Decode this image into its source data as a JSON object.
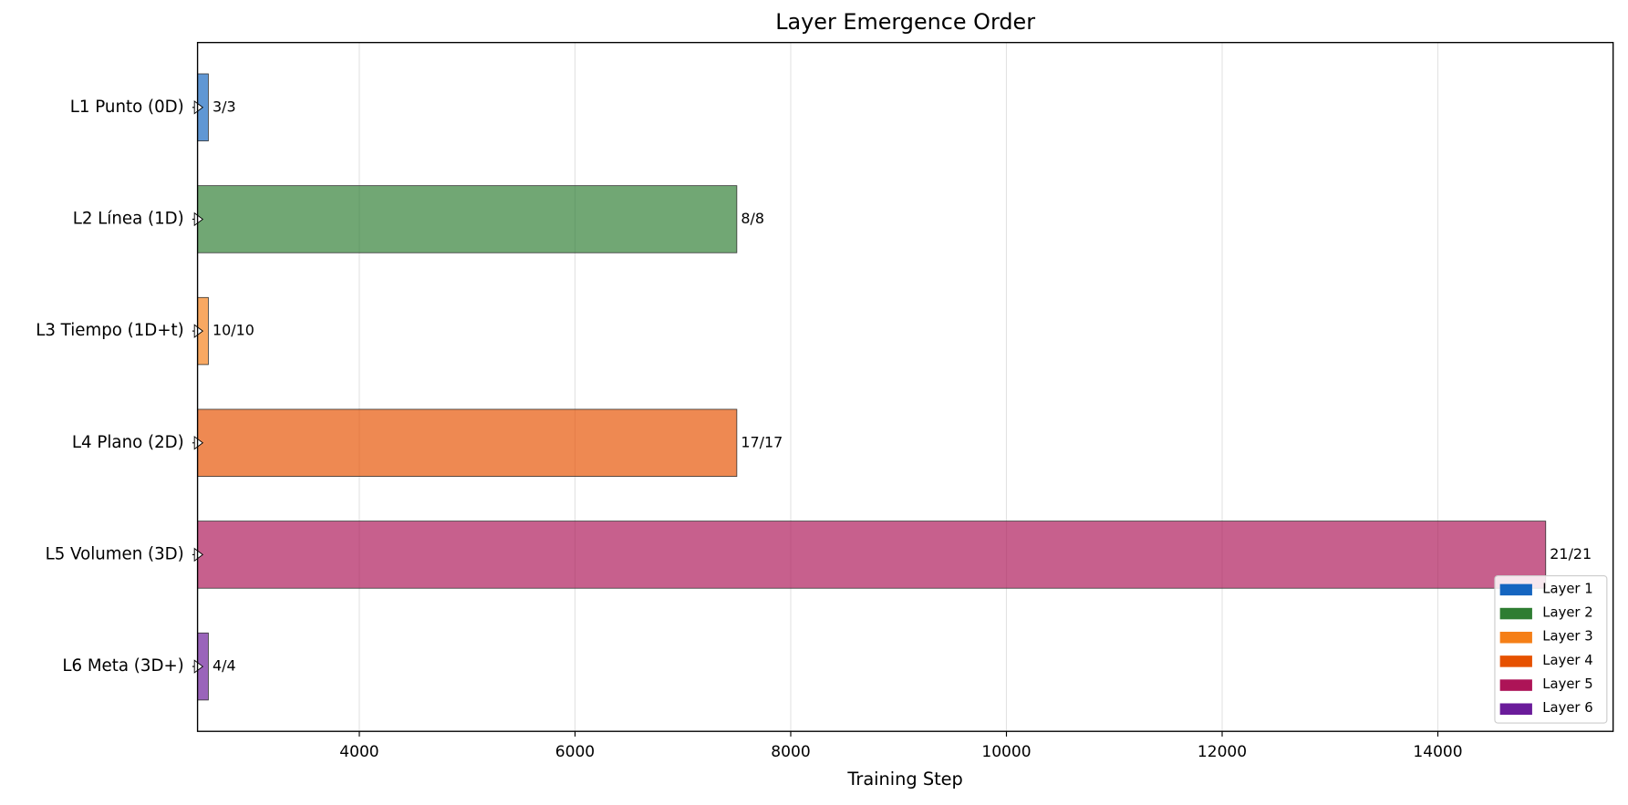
{
  "chart_data": {
    "type": "barh",
    "title": "Layer Emergence Order",
    "xlabel": "Training Step",
    "categories": [
      "L1 Punto (0D)",
      "L2 Línea (1D)",
      "L3 Tiempo (1D+t)",
      "L4 Plano (2D)",
      "L5 Volumen (3D)",
      "L6 Meta (3D+)"
    ],
    "values": [
      2600,
      7500,
      2600,
      7500,
      15000,
      2600
    ],
    "markers": [
      2500,
      2500,
      2500,
      2500,
      2500,
      2500
    ],
    "annotations": [
      "3/3",
      "8/8",
      "10/10",
      "17/17",
      "21/21",
      "4/4"
    ],
    "colors": [
      "#1565c0",
      "#2e7d32",
      "#f57f17",
      "#e65100",
      "#ad1457",
      "#6a1b9a"
    ],
    "legend": [
      "Layer 1",
      "Layer 2",
      "Layer 3",
      "Layer 4",
      "Layer 5",
      "Layer 6"
    ],
    "legend_position": "lower right",
    "xlim": [
      2500,
      15625
    ],
    "xticks": [
      4000,
      6000,
      8000,
      10000,
      12000,
      14000
    ],
    "grid": true
  }
}
